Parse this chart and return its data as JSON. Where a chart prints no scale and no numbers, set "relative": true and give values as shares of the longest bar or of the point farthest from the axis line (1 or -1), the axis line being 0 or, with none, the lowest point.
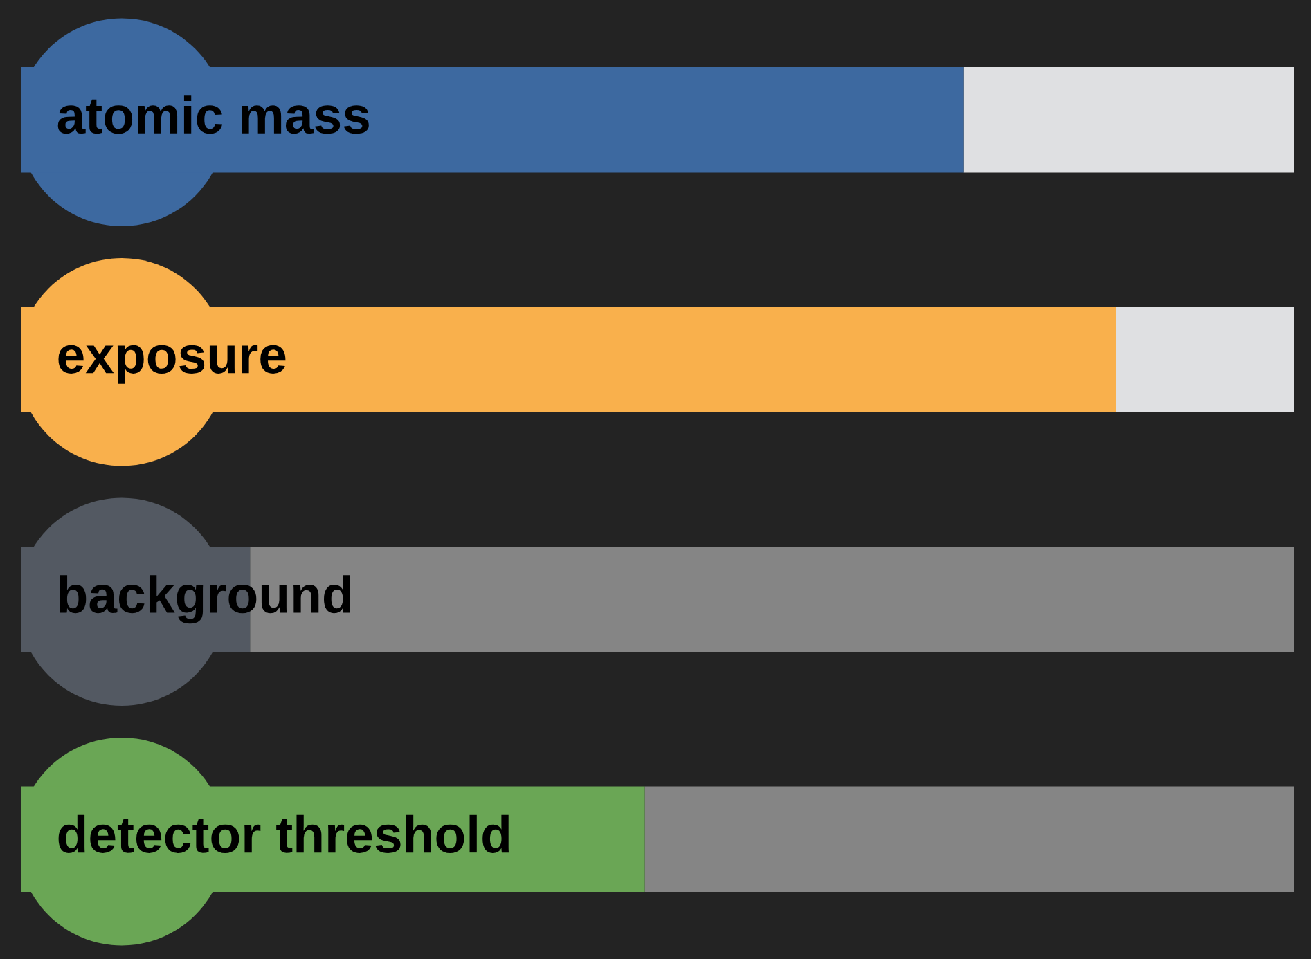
{
  "chart_data": {
    "type": "bar",
    "orientation": "horizontal",
    "stacked": true,
    "relative": true,
    "categories": [
      "atomic mass",
      "exposure",
      "background",
      "detector threshold"
    ],
    "series": [
      {
        "colors": [
          "#3d69a0",
          "#f9b04c",
          "#535962",
          "#6aa655"
        ],
        "values": [
          0.74,
          0.86,
          0.18,
          0.49
        ]
      },
      {
        "colors": [
          "#dfe0e2",
          "#dfe0e2",
          "#858585",
          "#858585"
        ],
        "values": [
          0.26,
          0.14,
          0.82,
          0.51
        ]
      }
    ]
  }
}
